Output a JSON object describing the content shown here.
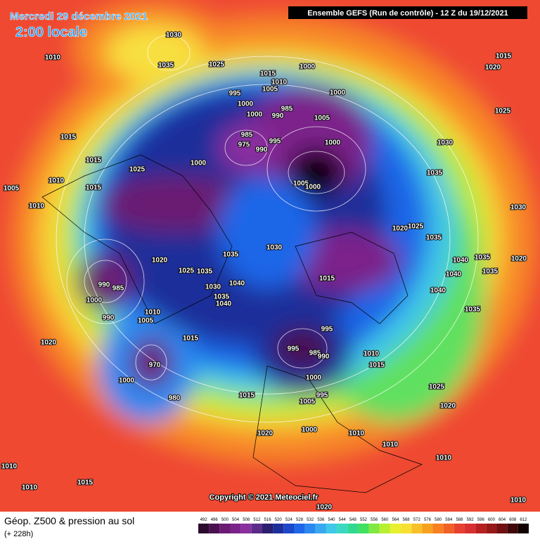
{
  "header": {
    "date": "Mercredi 29 décembre 2021",
    "time": "2:00 locale",
    "run": "Ensemble GEFS  (Run de contrôle)  -  12 Z du 19/12/2021"
  },
  "footer": {
    "copyright": "Copyright © 2021 Meteociel.fr",
    "title": "Géop. Z500 & pression au sol",
    "lead": "(+ 228h)"
  },
  "legend": {
    "values": [
      492,
      496,
      500,
      504,
      508,
      512,
      516,
      520,
      524,
      528,
      532,
      536,
      540,
      544,
      548,
      552,
      556,
      560,
      564,
      568,
      572,
      576,
      580,
      584,
      588,
      592,
      596,
      600,
      604,
      608,
      612
    ],
    "colors": [
      "#2b0a2e",
      "#4a1050",
      "#6a1a72",
      "#7b238a",
      "#8a2f9f",
      "#5a2b8a",
      "#2a1f6e",
      "#1c2f9a",
      "#1b47c8",
      "#1f66e8",
      "#2a88f0",
      "#38a8f0",
      "#40c8e8",
      "#3ad8c0",
      "#30d890",
      "#40e060",
      "#80e840",
      "#b8f030",
      "#e8f030",
      "#f8e030",
      "#f8c028",
      "#f8a020",
      "#f88020",
      "#f06028",
      "#e84030",
      "#d83030",
      "#b82020",
      "#981818",
      "#701010",
      "#400808",
      "#100000"
    ]
  },
  "isobar_labels": [
    1030,
    1035,
    1010,
    1025,
    1015,
    1010,
    1005,
    995,
    1000,
    1000,
    990,
    985,
    1000,
    1000,
    1005,
    985,
    975,
    990,
    995,
    1000,
    1000,
    1005,
    1000,
    1015,
    1015,
    1025,
    1010,
    1005,
    1015,
    1010,
    1020,
    1025,
    1035,
    1030,
    1025,
    1015,
    1020,
    1030,
    1035,
    1040,
    1035,
    1020,
    1040,
    1035,
    1040,
    1035,
    1030,
    1035,
    1015,
    1020,
    1025,
    1035,
    1040,
    1030,
    1035,
    1040,
    990,
    985,
    1000,
    990,
    1010,
    1005,
    1015,
    995,
    995,
    985,
    990,
    1010,
    1015,
    1000,
    1015,
    1005,
    995,
    1025,
    1020,
    1020,
    1000,
    1010,
    1010,
    1010,
    1020,
    1010,
    1015,
    1010,
    1020,
    1010,
    980,
    1000,
    970
  ]
}
